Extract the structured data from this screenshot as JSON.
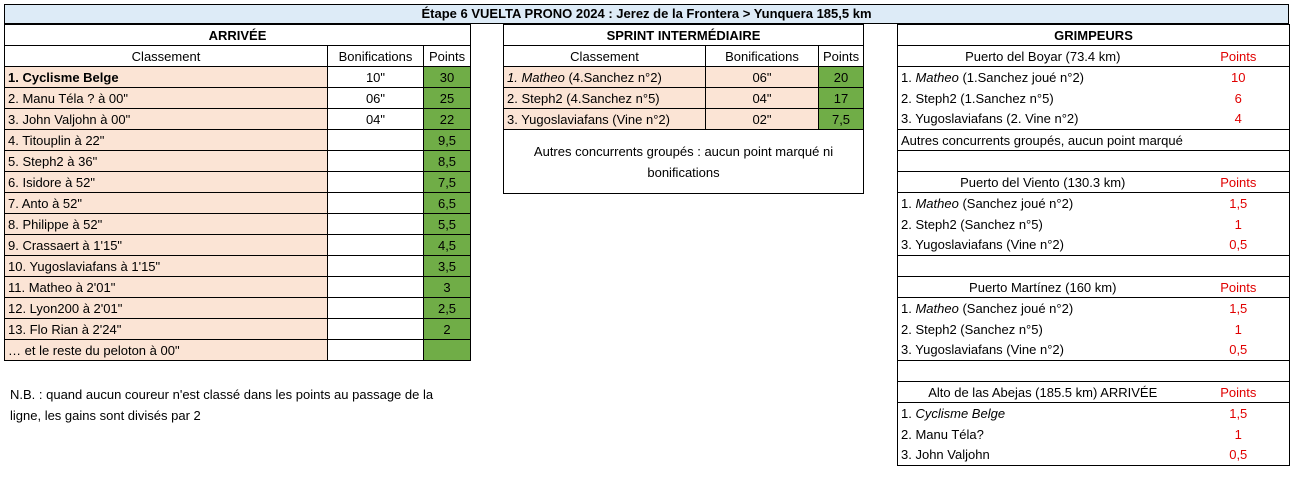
{
  "title": "Étape 6 VUELTA PRONO 2024 : Jerez de la Frontera > Yunquera 185,5 km",
  "arrivee": {
    "heading": "ARRIVÉE",
    "col_classement": "Classement",
    "col_bonif": "Bonifications",
    "col_points": "Points",
    "rows": [
      {
        "name": "1. Cyclisme Belge",
        "bonif": "10\"",
        "points": "30"
      },
      {
        "name": "2. Manu Téla ? à 00\"",
        "bonif": "06\"",
        "points": "25"
      },
      {
        "name": "3. John Valjohn à 00\"",
        "bonif": "04\"",
        "points": "22"
      },
      {
        "name": "4. Titouplin à 22\"",
        "bonif": "",
        "points": "9,5"
      },
      {
        "name": "5. Steph2 à 36\"",
        "bonif": "",
        "points": "8,5"
      },
      {
        "name": "6. Isidore à 52\"",
        "bonif": "",
        "points": "7,5"
      },
      {
        "name": "7. Anto à 52\"",
        "bonif": "",
        "points": "6,5"
      },
      {
        "name": "8. Philippe à 52\"",
        "bonif": "",
        "points": "5,5"
      },
      {
        "name": "9. Crassaert à 1'15\"",
        "bonif": "",
        "points": "4,5"
      },
      {
        "name": "10. Yugoslaviafans à 1'15\"",
        "bonif": "",
        "points": "3,5"
      },
      {
        "name": "11. Matheo à 2'01\"",
        "bonif": "",
        "points": "3"
      },
      {
        "name": "12. Lyon200 à 2'01\"",
        "bonif": "",
        "points": "2,5"
      },
      {
        "name": "13. Flo Rian à 2'24\"",
        "bonif": "",
        "points": "2"
      },
      {
        "name": "… et le reste du peloton à 00\"",
        "bonif": "",
        "points": ""
      }
    ],
    "note": "N.B. : quand aucun coureur n'est classé dans les points au passage de la ligne, les gains sont divisés par 2"
  },
  "sprint": {
    "heading": "SPRINT INTERMÉDIAIRE",
    "col_classement": "Classement",
    "col_bonif": "Bonifications",
    "col_points": "Points",
    "rows": [
      {
        "name": "1. Matheo",
        "detail": " (4.Sanchez n°2)",
        "bonif": "06\"",
        "points": "20"
      },
      {
        "name": "2. Steph2 (4.Sanchez n°5)",
        "detail": "",
        "bonif": "04\"",
        "points": "17"
      },
      {
        "name": "3. Yugoslaviafans (Vine n°2)",
        "detail": "",
        "bonif": "02\"",
        "points": "7,5"
      }
    ],
    "note": "Autres concurrents groupés : aucun point marqué ni bonifications"
  },
  "grimpeurs": {
    "heading": "GRIMPEURS",
    "points_label": "Points",
    "climbs": [
      {
        "name": "Puerto del Boyar (73.4 km)",
        "rows": [
          {
            "rank": "1. ",
            "name": "Matheo",
            "detail": " (1.Sanchez joué n°2)",
            "points": "10"
          },
          {
            "rank": "2. ",
            "name": "Steph2 (1.Sanchez n°5)",
            "detail": "",
            "points": "6"
          },
          {
            "rank": "3. ",
            "name": "Yugoslaviafans (2. Vine n°2)",
            "detail": "",
            "points": "4"
          }
        ],
        "note": "Autres concurrents groupés, aucun  point marqué"
      },
      {
        "name": "Puerto del Viento (130.3 km)",
        "rows": [
          {
            "rank": "1. ",
            "name": "Matheo",
            "detail": "  (Sanchez joué n°2)",
            "points": "1,5"
          },
          {
            "rank": "2. ",
            "name": "Steph2 (Sanchez n°5)",
            "detail": "",
            "points": "1"
          },
          {
            "rank": "3. ",
            "name": "Yugoslaviafans (Vine n°2)",
            "detail": "",
            "points": "0,5"
          }
        ],
        "note": ""
      },
      {
        "name": "Puerto Martínez (160 km)",
        "rows": [
          {
            "rank": "1. ",
            "name": "Matheo",
            "detail": "  (Sanchez joué n°2)",
            "points": "1,5"
          },
          {
            "rank": "2. ",
            "name": "Steph2 (Sanchez n°5)",
            "detail": "",
            "points": "1"
          },
          {
            "rank": "3. ",
            "name": "Yugoslaviafans (Vine n°2)",
            "detail": "",
            "points": "0,5"
          }
        ],
        "note": ""
      },
      {
        "name": "Alto de las Abejas (185.5 km)  ARRIVÉE",
        "rows": [
          {
            "rank": "1. ",
            "name": "Cyclisme Belge",
            "detail": "",
            "points": "1,5"
          },
          {
            "rank": "2. ",
            "name": "Manu Téla?",
            "detail": "",
            "points": "1"
          },
          {
            "rank": "3. ",
            "name": "John Valjohn",
            "detail": "",
            "points": "0,5"
          }
        ],
        "note": null
      }
    ]
  }
}
